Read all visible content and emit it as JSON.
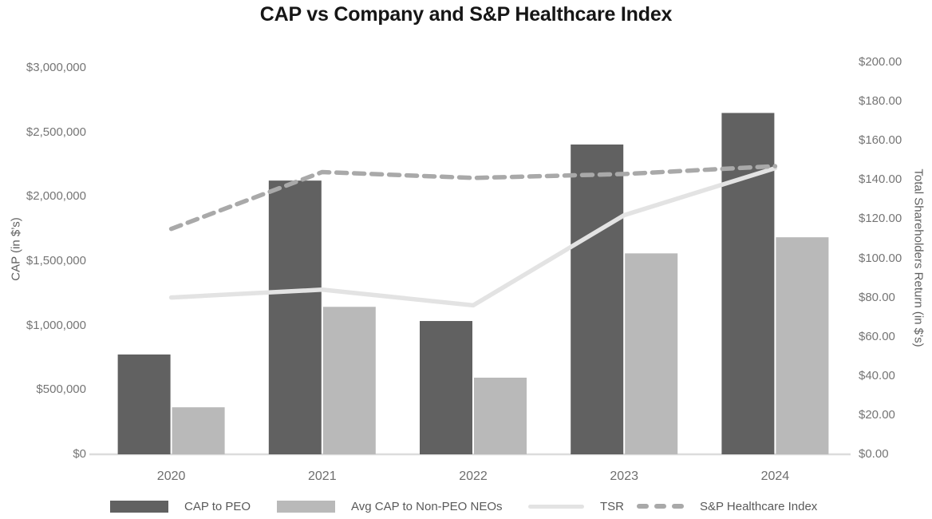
{
  "title": "CAP vs Company and S&P Healthcare Index",
  "chart_data": {
    "type": "combo-bar-line",
    "title": "CAP vs Company and S&P Healthcare Index",
    "categories": [
      "2020",
      "2021",
      "2022",
      "2023",
      "2024"
    ],
    "series": [
      {
        "name": "CAP to PEO",
        "type": "bar",
        "axis": "left",
        "color": "#616161",
        "values": [
          775000,
          2125000,
          1035000,
          2405000,
          2650000
        ]
      },
      {
        "name": "Avg CAP to Non-PEO NEOs",
        "type": "bar",
        "axis": "left",
        "color": "#b9b9b9",
        "values": [
          365000,
          1145000,
          595000,
          1560000,
          1685000
        ]
      },
      {
        "name": "TSR",
        "type": "line",
        "style": "solid",
        "axis": "right",
        "color": "#e3e3e3",
        "values": [
          80,
          84,
          76,
          122,
          146
        ]
      },
      {
        "name": "S&P Healthcare Index",
        "type": "line",
        "style": "dashed",
        "axis": "right",
        "color": "#a9a9a9",
        "values": [
          115,
          144,
          141,
          143,
          147
        ]
      }
    ],
    "left_axis": {
      "title": "CAP (in $’s)",
      "min": 0,
      "max": 3000000,
      "tick_step": 500000,
      "tick_labels": [
        "$3,000,000",
        "$2,500,000",
        "$2,000,000",
        "$1,500,000",
        "$1,000,000",
        "$500,000",
        "$0"
      ]
    },
    "right_axis": {
      "title": "Total Shareholders Return (in $’s)",
      "min": 0,
      "max": 200,
      "tick_step": 20,
      "tick_labels": [
        "$200.00",
        "$180.00",
        "$160.00",
        "$140.00",
        "$120.00",
        "$100.00",
        "$80.00",
        "$60.00",
        "$40.00",
        "$20.00",
        "$0.00"
      ]
    },
    "grid": "baseline-only",
    "legend_position": "bottom",
    "baseline_color": "#dcdcdc"
  }
}
